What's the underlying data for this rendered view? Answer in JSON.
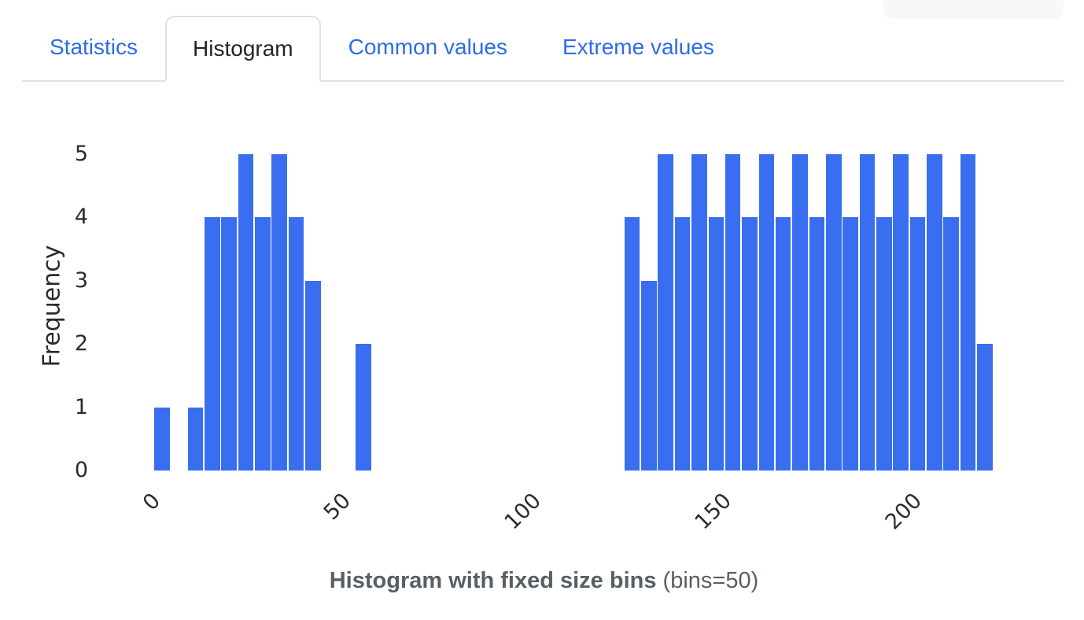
{
  "tabs": {
    "items": [
      {
        "label": "Statistics",
        "active": false
      },
      {
        "label": "Histogram",
        "active": true
      },
      {
        "label": "Common values",
        "active": false
      },
      {
        "label": "Extreme values",
        "active": false
      }
    ]
  },
  "top_right_button": {
    "label": ""
  },
  "chart_data": {
    "type": "bar",
    "subtype": "histogram",
    "title_bold": "Histogram with fixed size bins",
    "title_suffix": "(bins=50)",
    "ylabel": "Frequency",
    "xlabel": "",
    "bins": 50,
    "values": [
      1,
      0,
      1,
      4,
      4,
      5,
      4,
      5,
      4,
      3,
      0,
      0,
      2,
      0,
      0,
      0,
      0,
      0,
      0,
      0,
      0,
      0,
      0,
      0,
      0,
      0,
      0,
      0,
      4,
      3,
      5,
      4,
      5,
      4,
      5,
      4,
      5,
      4,
      5,
      4,
      5,
      4,
      5,
      4,
      5,
      4,
      5,
      4,
      5,
      2
    ],
    "x_start_approx": -1.6,
    "bin_width_approx": 4.41,
    "x_ticks": [
      0,
      50,
      100,
      150,
      200
    ],
    "y_ticks": [
      0,
      1,
      2,
      3,
      4,
      5
    ],
    "ylim": [
      0,
      5
    ],
    "grid": false,
    "legend": false,
    "bar_color": "#3a6ef0"
  },
  "colors": {
    "tab_link": "#2e6ce6",
    "tab_active_text": "#212529",
    "tab_border": "#dee2e6",
    "bar_blue": "#3a6ef0",
    "title_gray": "#575f62",
    "tick_text": "#2b2b2b",
    "button_bg": "#f7f8fa"
  }
}
